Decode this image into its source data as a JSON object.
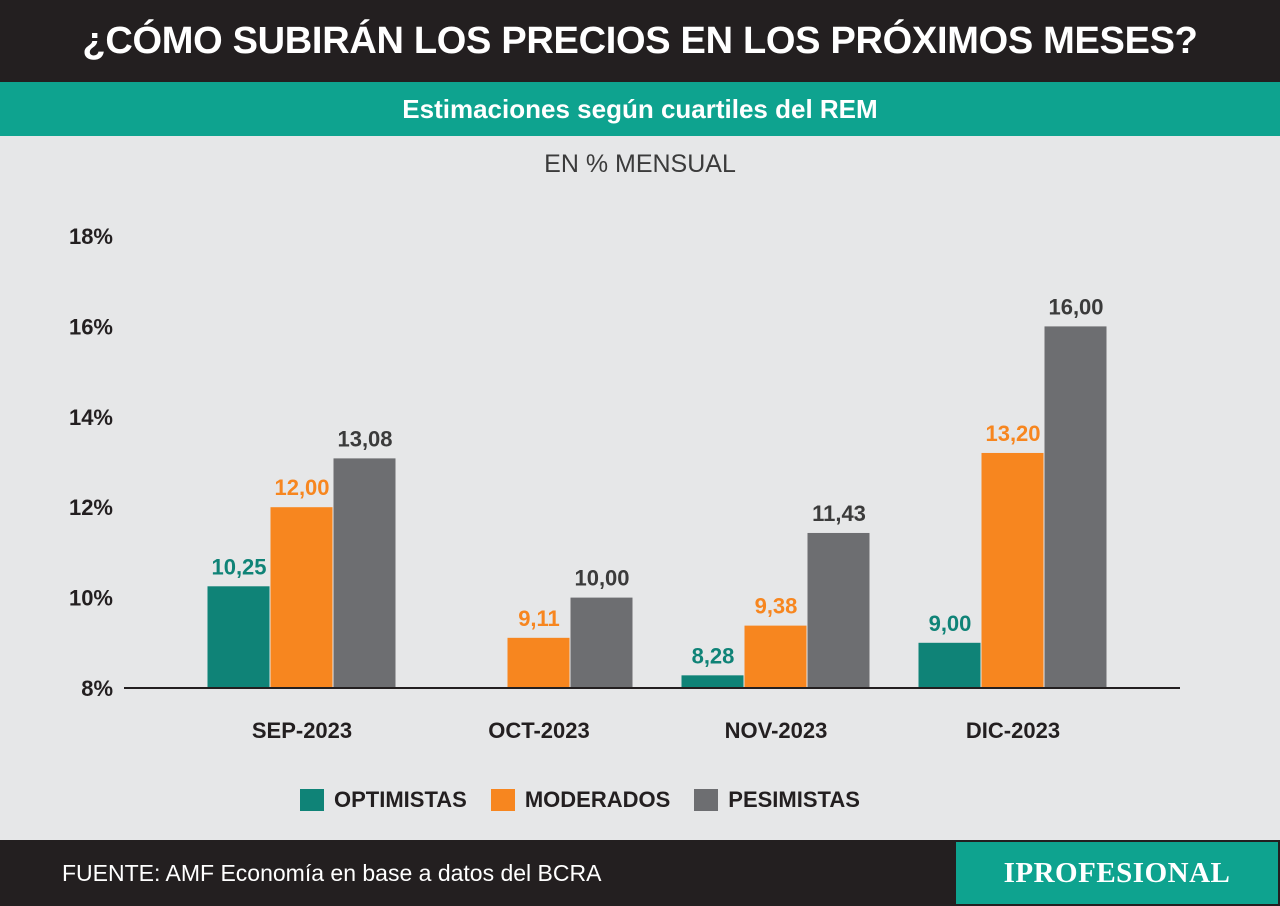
{
  "header": {
    "title": "¿CÓMO SUBIRÁN LOS PRECIOS EN LOS PRÓXIMOS MESES?",
    "subtitle": "Estimaciones según cuartiles del REM",
    "unit": "EN % MENSUAL"
  },
  "colors": {
    "optimistas": "#0f8377",
    "moderados": "#f7861f",
    "pesimistas": "#6d6e71",
    "optimistas_label": "#0f8377",
    "moderados_label": "#f7861f",
    "pesimistas_label": "#3b3b3b"
  },
  "chart_data": {
    "type": "bar",
    "categories": [
      "SEP-2023",
      "OCT-2023",
      "NOV-2023",
      "DIC-2023"
    ],
    "series": [
      {
        "name": "OPTIMISTAS",
        "values": [
          10.25,
          null,
          8.28,
          9.0
        ],
        "labels": [
          "10,25",
          "",
          "8,28",
          "9,00"
        ]
      },
      {
        "name": "MODERADOS",
        "values": [
          12.0,
          9.11,
          9.38,
          13.2
        ],
        "labels": [
          "12,00",
          "9,11",
          "9,38",
          "13,20"
        ]
      },
      {
        "name": "PESIMISTAS",
        "values": [
          13.08,
          10.0,
          11.43,
          16.0
        ],
        "labels": [
          "13,08",
          "10,00",
          "11,43",
          "16,00"
        ]
      }
    ],
    "ylim": [
      8,
      18
    ],
    "yticks": [
      8,
      10,
      12,
      14,
      16,
      18
    ],
    "ytick_labels": [
      "8%",
      "10%",
      "12%",
      "14%",
      "16%",
      "18%"
    ],
    "grid": false,
    "legend_position": "bottom"
  },
  "footer": {
    "source": "FUENTE: AMF Economía en base a datos del BCRA",
    "logo": "IPROFESIONAL"
  }
}
